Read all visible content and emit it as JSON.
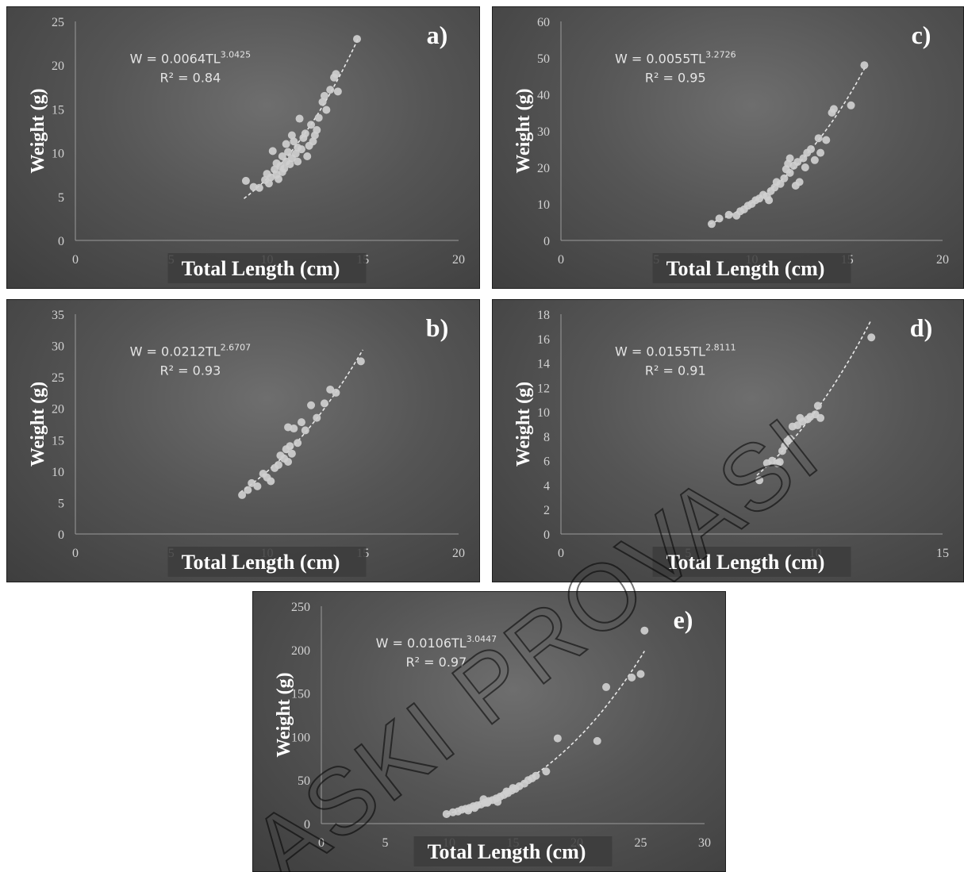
{
  "watermark": "ASKI PROVASI",
  "chart_data": [
    {
      "id": "a",
      "type": "scatter",
      "panel_label": "a)",
      "xlabel": "Total Length (cm)",
      "ylabel": "Weight (g)",
      "xlim": [
        0,
        20
      ],
      "ylim": [
        0,
        25
      ],
      "xticks": [
        0,
        5,
        10,
        15,
        20
      ],
      "yticks": [
        0,
        5,
        10,
        15,
        20,
        25
      ],
      "equation": {
        "prefix": "W = 0.0064TL",
        "exponent": "3.0425",
        "r2": "R² = 0.84"
      },
      "fit": {
        "a": 0.0064,
        "b": 3.0425,
        "x_range": [
          8.8,
          14.8
        ]
      },
      "points": [
        [
          8.9,
          6.8
        ],
        [
          9.3,
          6.1
        ],
        [
          9.6,
          6.0
        ],
        [
          9.9,
          6.9
        ],
        [
          10.0,
          7.6
        ],
        [
          10.1,
          6.5
        ],
        [
          10.2,
          7.2
        ],
        [
          10.4,
          8.1
        ],
        [
          10.5,
          7.5
        ],
        [
          10.6,
          7.0
        ],
        [
          10.7,
          8.5
        ],
        [
          10.8,
          9.6
        ],
        [
          10.9,
          8.2
        ],
        [
          11.0,
          9.0
        ],
        [
          11.1,
          10.1
        ],
        [
          11.2,
          8.7
        ],
        [
          11.3,
          9.4
        ],
        [
          11.4,
          11.3
        ],
        [
          11.5,
          9.9
        ],
        [
          11.6,
          10.6
        ],
        [
          11.7,
          13.9
        ],
        [
          11.8,
          10.4
        ],
        [
          11.9,
          11.7
        ],
        [
          12.0,
          12.2
        ],
        [
          12.1,
          9.6
        ],
        [
          12.2,
          10.8
        ],
        [
          12.3,
          13.2
        ],
        [
          12.4,
          11.3
        ],
        [
          12.6,
          12.6
        ],
        [
          12.7,
          14.0
        ],
        [
          12.9,
          15.8
        ],
        [
          13.0,
          16.5
        ],
        [
          13.1,
          14.9
        ],
        [
          13.3,
          17.2
        ],
        [
          13.5,
          18.6
        ],
        [
          13.6,
          19.0
        ],
        [
          13.7,
          17.0
        ],
        [
          14.7,
          23.0
        ],
        [
          10.3,
          10.2
        ],
        [
          11.0,
          11.0
        ],
        [
          10.5,
          8.8
        ],
        [
          11.6,
          9.0
        ],
        [
          12.5,
          12.0
        ],
        [
          11.3,
          12.0
        ],
        [
          10.8,
          7.8
        ]
      ]
    },
    {
      "id": "b",
      "type": "scatter",
      "panel_label": "b)",
      "xlabel": "Total Length (cm)",
      "ylabel": "Weight (g)",
      "xlim": [
        0,
        20
      ],
      "ylim": [
        0,
        35
      ],
      "xticks": [
        0,
        5,
        10,
        15,
        20
      ],
      "yticks": [
        0,
        5,
        10,
        15,
        20,
        25,
        30,
        35
      ],
      "equation": {
        "prefix": "W = 0.0212TL",
        "exponent": "2.6707",
        "r2": "R² = 0.93"
      },
      "fit": {
        "a": 0.0212,
        "b": 2.6707,
        "x_range": [
          8.6,
          15.0
        ]
      },
      "points": [
        [
          8.7,
          6.2
        ],
        [
          9.0,
          7.0
        ],
        [
          9.2,
          8.1
        ],
        [
          9.5,
          7.6
        ],
        [
          9.8,
          9.6
        ],
        [
          10.0,
          9.0
        ],
        [
          10.2,
          8.4
        ],
        [
          10.6,
          11.0
        ],
        [
          10.7,
          12.5
        ],
        [
          10.9,
          12.0
        ],
        [
          11.0,
          13.5
        ],
        [
          11.1,
          11.5
        ],
        [
          11.2,
          14.0
        ],
        [
          11.1,
          17.0
        ],
        [
          11.4,
          16.8
        ],
        [
          11.6,
          14.5
        ],
        [
          11.8,
          17.8
        ],
        [
          12.0,
          16.5
        ],
        [
          12.3,
          20.5
        ],
        [
          12.6,
          18.5
        ],
        [
          13.0,
          20.8
        ],
        [
          13.3,
          23.0
        ],
        [
          13.6,
          22.5
        ],
        [
          14.9,
          27.5
        ],
        [
          11.3,
          12.8
        ],
        [
          10.4,
          10.5
        ]
      ]
    },
    {
      "id": "c",
      "type": "scatter",
      "panel_label": "c)",
      "xlabel": "Total Length (cm)",
      "ylabel": "Weight (g)",
      "xlim": [
        0,
        20
      ],
      "ylim": [
        0,
        60
      ],
      "xticks": [
        0,
        5,
        10,
        15,
        20
      ],
      "yticks": [
        0,
        10,
        20,
        30,
        40,
        50,
        60
      ],
      "equation": {
        "prefix": "W = 0.0055TL",
        "exponent": "3.2726",
        "r2": "R² = 0.95"
      },
      "fit": {
        "a": 0.0055,
        "b": 3.2726,
        "x_range": [
          7.8,
          16.0
        ]
      },
      "points": [
        [
          7.9,
          4.5
        ],
        [
          8.3,
          6.0
        ],
        [
          8.8,
          7.0
        ],
        [
          9.2,
          6.8
        ],
        [
          9.4,
          8.0
        ],
        [
          9.6,
          8.5
        ],
        [
          9.8,
          9.5
        ],
        [
          10.0,
          10.0
        ],
        [
          10.2,
          11.0
        ],
        [
          10.4,
          11.5
        ],
        [
          10.6,
          12.5
        ],
        [
          10.8,
          12.0
        ],
        [
          11.0,
          13.5
        ],
        [
          11.2,
          14.5
        ],
        [
          11.3,
          16.0
        ],
        [
          11.5,
          15.5
        ],
        [
          11.7,
          17.0
        ],
        [
          11.8,
          19.5
        ],
        [
          12.0,
          18.5
        ],
        [
          12.2,
          20.5
        ],
        [
          12.4,
          21.5
        ],
        [
          12.5,
          16.0
        ],
        [
          12.7,
          22.5
        ],
        [
          12.9,
          24.0
        ],
        [
          13.1,
          25.0
        ],
        [
          13.3,
          22.0
        ],
        [
          13.5,
          28.0
        ],
        [
          13.6,
          24.0
        ],
        [
          13.9,
          27.5
        ],
        [
          14.2,
          35.0
        ],
        [
          14.3,
          36.0
        ],
        [
          15.2,
          37.0
        ],
        [
          15.9,
          48.0
        ],
        [
          10.9,
          11.0
        ],
        [
          11.9,
          21.0
        ],
        [
          12.3,
          15.0
        ],
        [
          12.8,
          20.0
        ],
        [
          12.0,
          22.5
        ]
      ]
    },
    {
      "id": "d",
      "type": "scatter",
      "panel_label": "d)",
      "xlabel": "Total Length (cm)",
      "ylabel": "Weight (g)",
      "xlim": [
        0,
        15
      ],
      "ylim": [
        0,
        18
      ],
      "xticks": [
        0,
        5,
        10,
        15
      ],
      "yticks": [
        0,
        2,
        4,
        6,
        8,
        10,
        12,
        14,
        16,
        18
      ],
      "equation": {
        "prefix": "W = 0.0155TL",
        "exponent": "2.8111",
        "r2": "R² = 0.91"
      },
      "fit": {
        "a": 0.0155,
        "b": 2.8111,
        "x_range": [
          7.7,
          12.2
        ]
      },
      "points": [
        [
          7.8,
          4.4
        ],
        [
          8.1,
          5.8
        ],
        [
          8.3,
          6.0
        ],
        [
          8.5,
          5.8
        ],
        [
          8.6,
          5.9
        ],
        [
          8.7,
          6.8
        ],
        [
          8.8,
          7.2
        ],
        [
          8.9,
          7.6
        ],
        [
          9.0,
          7.8
        ],
        [
          9.1,
          8.8
        ],
        [
          9.3,
          8.9
        ],
        [
          9.4,
          9.5
        ],
        [
          9.5,
          9.2
        ],
        [
          9.7,
          9.4
        ],
        [
          9.8,
          9.6
        ],
        [
          10.0,
          9.8
        ],
        [
          10.1,
          10.5
        ],
        [
          10.2,
          9.5
        ],
        [
          12.2,
          16.1
        ]
      ]
    },
    {
      "id": "e",
      "type": "scatter",
      "panel_label": "e)",
      "xlabel": "Total Length (cm)",
      "ylabel": "Weight (g)",
      "xlim": [
        0,
        30
      ],
      "ylim": [
        0,
        250
      ],
      "xticks": [
        0,
        5,
        10,
        15,
        20,
        25,
        30
      ],
      "yticks": [
        0,
        50,
        100,
        150,
        200,
        250
      ],
      "equation": {
        "prefix": "W = 0.0106TL",
        "exponent": "3.0447",
        "r2": "R² = 0.97"
      },
      "fit": {
        "a": 0.0106,
        "b": 3.0447,
        "x_range": [
          9.8,
          25.3
        ]
      },
      "points": [
        [
          9.8,
          11
        ],
        [
          10.3,
          13
        ],
        [
          10.7,
          14
        ],
        [
          11.0,
          16
        ],
        [
          11.3,
          17
        ],
        [
          11.6,
          18
        ],
        [
          11.9,
          20
        ],
        [
          12.2,
          21
        ],
        [
          12.5,
          22
        ],
        [
          12.8,
          24
        ],
        [
          13.1,
          26
        ],
        [
          13.4,
          27
        ],
        [
          13.7,
          29
        ],
        [
          14.0,
          31
        ],
        [
          14.3,
          33
        ],
        [
          14.6,
          35
        ],
        [
          14.9,
          38
        ],
        [
          15.2,
          40
        ],
        [
          15.5,
          43
        ],
        [
          15.9,
          46
        ],
        [
          16.2,
          50
        ],
        [
          16.5,
          52
        ],
        [
          16.8,
          55
        ],
        [
          17.6,
          60
        ],
        [
          18.5,
          98
        ],
        [
          21.6,
          95
        ],
        [
          22.3,
          157
        ],
        [
          24.3,
          168
        ],
        [
          25.0,
          172
        ],
        [
          25.3,
          222
        ],
        [
          12.0,
          18
        ],
        [
          13.0,
          24
        ],
        [
          14.5,
          37
        ],
        [
          15.0,
          41
        ],
        [
          11.5,
          15
        ],
        [
          12.7,
          28
        ],
        [
          13.8,
          25
        ]
      ]
    }
  ]
}
